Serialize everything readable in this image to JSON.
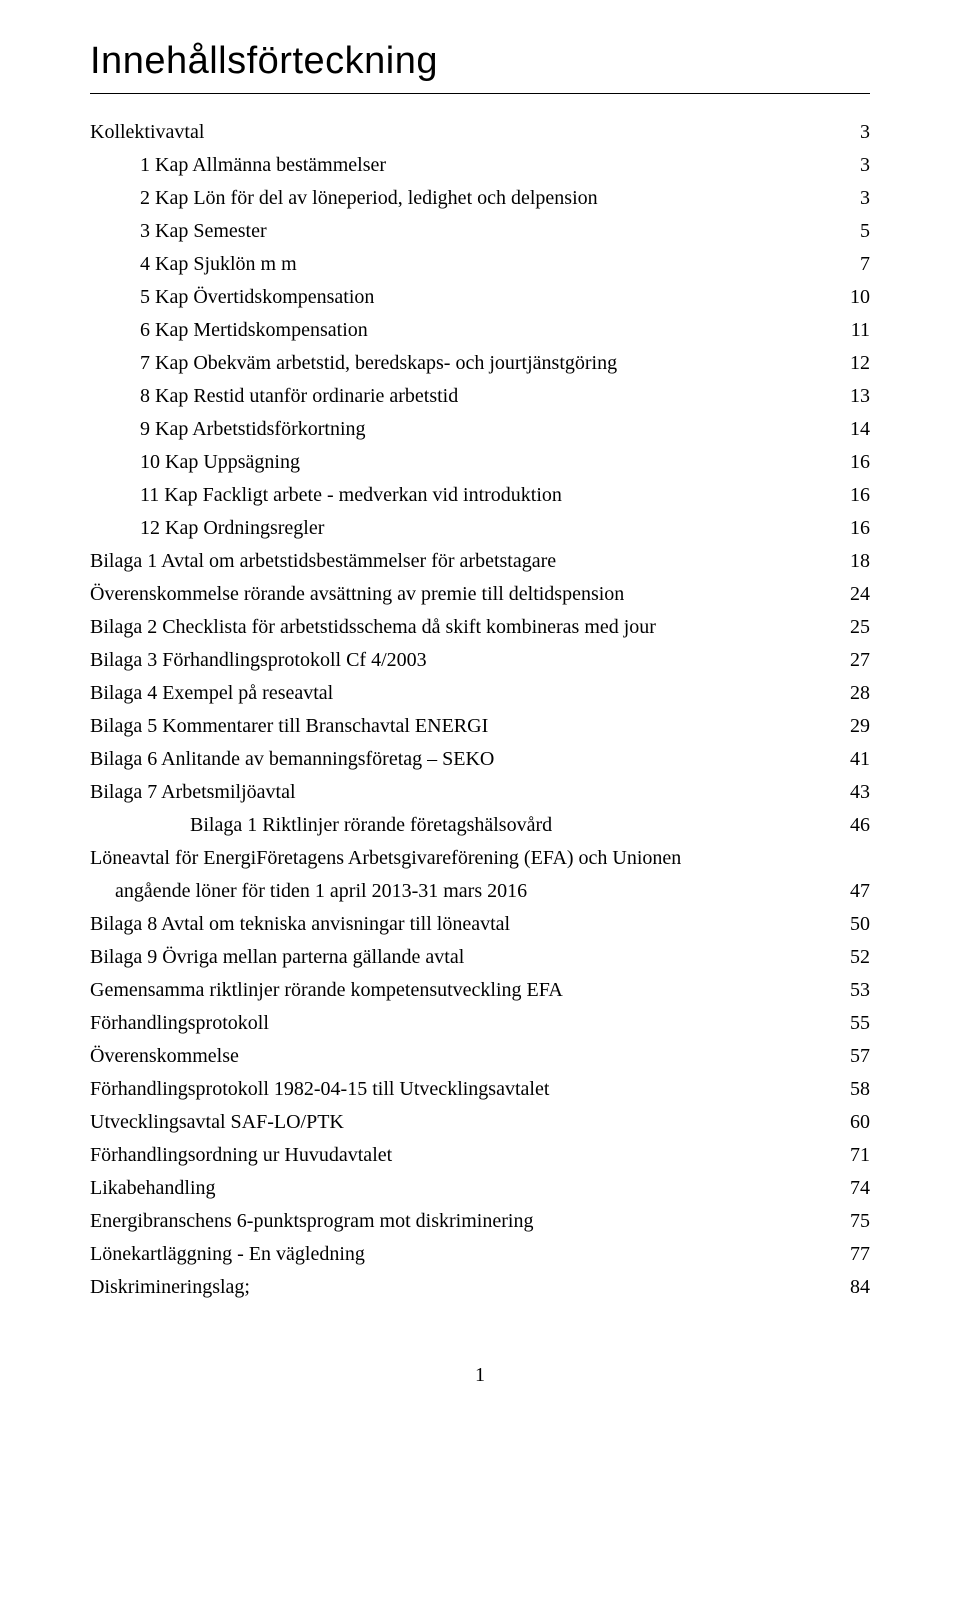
{
  "title": "Innehållsförteckning",
  "page_number": "1",
  "entries": [
    {
      "label": "Kollektivavtal",
      "page": "3",
      "indent": 0
    },
    {
      "label": "1 Kap Allmänna bestämmelser",
      "page": "3",
      "indent": 1
    },
    {
      "label": "2 Kap Lön för del av löneperiod, ledighet och delpension",
      "page": "3",
      "indent": 1
    },
    {
      "label": "3 Kap Semester",
      "page": "5",
      "indent": 1
    },
    {
      "label": "4 Kap Sjuklön m m",
      "page": "7",
      "indent": 1
    },
    {
      "label": "5 Kap Övertidskompensation",
      "page": "10",
      "indent": 1
    },
    {
      "label": "6 Kap Mertidskompensation",
      "page": "11",
      "indent": 1
    },
    {
      "label": "7 Kap Obekväm arbetstid, beredskaps- och jourtjänstgöring",
      "page": "12",
      "indent": 1
    },
    {
      "label": "8 Kap Restid utanför ordinarie arbetstid",
      "page": "13",
      "indent": 1
    },
    {
      "label": "9 Kap Arbetstidsförkortning",
      "page": "14",
      "indent": 1
    },
    {
      "label": "10 Kap Uppsägning",
      "page": "16",
      "indent": 1
    },
    {
      "label": "11 Kap Fackligt arbete - medverkan vid introduktion",
      "page": "16",
      "indent": 1
    },
    {
      "label": "12 Kap Ordningsregler",
      "page": "16",
      "indent": 1
    },
    {
      "label": "Bilaga 1  Avtal om arbetstidsbestämmelser för arbetstagare",
      "page": "18",
      "indent": 0
    },
    {
      "label": "Överenskommelse rörande avsättning av premie till deltidspension",
      "page": "24",
      "indent": 0
    },
    {
      "label": "Bilaga 2  Checklista för arbetstidsschema då skift kombineras med jour",
      "page": "25",
      "indent": 0
    },
    {
      "label": "Bilaga 3  Förhandlingsprotokoll Cf 4/2003",
      "page": "27",
      "indent": 0
    },
    {
      "label": "Bilaga 4  Exempel på reseavtal",
      "page": "28",
      "indent": 0
    },
    {
      "label": "Bilaga 5  Kommentarer till Branschavtal ENERGI",
      "page": "29",
      "indent": 0
    },
    {
      "label": "Bilaga 6  Anlitande av bemanningsföretag – SEKO",
      "page": "41",
      "indent": 0
    },
    {
      "label": "Bilaga 7  Arbetsmiljöavtal",
      "page": "43",
      "indent": 0
    },
    {
      "label": "Bilaga 1 Riktlinjer rörande företagshälsovård",
      "page": "46",
      "indent": 2
    },
    {
      "label": "Löneavtal för EnergiFöretagens Arbetsgivareförening (EFA) och Unionen",
      "page": "",
      "indent": 0
    },
    {
      "label": "angående löner för tiden 1 april 2013-31 mars 2016",
      "page": "47",
      "indent": 0,
      "sub": true
    },
    {
      "label": "Bilaga 8  Avtal om tekniska anvisningar till löneavtal",
      "page": "50",
      "indent": 0
    },
    {
      "label": "Bilaga 9  Övriga mellan parterna gällande avtal",
      "page": "52",
      "indent": 0
    },
    {
      "label": "Gemensamma riktlinjer rörande kompetensutveckling EFA",
      "page": "53",
      "indent": 0
    },
    {
      "label": "Förhandlingsprotokoll",
      "page": "55",
      "indent": 0
    },
    {
      "label": "Överenskommelse",
      "page": "57",
      "indent": 0
    },
    {
      "label": "Förhandlingsprotokoll 1982-04-15 till Utvecklingsavtalet",
      "page": "58",
      "indent": 0
    },
    {
      "label": "Utvecklingsavtal SAF-LO/PTK",
      "page": "60",
      "indent": 0
    },
    {
      "label": "Förhandlingsordning ur Huvudavtalet",
      "page": "71",
      "indent": 0
    },
    {
      "label": "Likabehandling",
      "page": "74",
      "indent": 0
    },
    {
      "label": "Energibranschens 6-punktsprogram mot  diskriminering",
      "page": "75",
      "indent": 0
    },
    {
      "label": "Lönekartläggning - En vägledning",
      "page": "77",
      "indent": 0
    },
    {
      "label": "Diskrimineringslag;",
      "page": "84",
      "indent": 0
    }
  ]
}
